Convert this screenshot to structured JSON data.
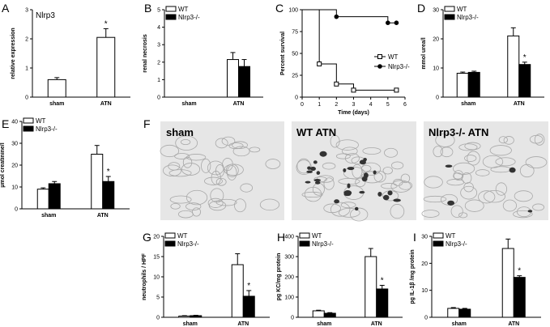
{
  "legend": {
    "wt": "WT",
    "ko": "Nlrp3-/-"
  },
  "chart_data": [
    {
      "panel": "A",
      "type": "bar",
      "title": "Nlrp3",
      "ylabel": "relative expression",
      "categories": [
        "sham",
        "ATN"
      ],
      "ylim": [
        0,
        3
      ],
      "yticks": [
        0,
        1,
        2,
        3
      ],
      "series": [
        {
          "values": [
            0.6,
            2.05
          ],
          "errors": [
            0.07,
            0.3
          ]
        }
      ],
      "significance": [
        "",
        "*"
      ]
    },
    {
      "panel": "B",
      "type": "bar",
      "ylabel": "renal necrosis",
      "categories": [
        "sham",
        "ATN"
      ],
      "ylim": [
        0,
        5
      ],
      "yticks": [
        0,
        1,
        2,
        3,
        4,
        5
      ],
      "series": [
        {
          "name": "WT",
          "values": [
            0,
            2.15
          ],
          "errors": [
            0,
            0.4
          ]
        },
        {
          "name": "Nlrp3-/-",
          "values": [
            0,
            1.75
          ],
          "errors": [
            0,
            0.4
          ]
        }
      ],
      "legend_position": "top-left"
    },
    {
      "panel": "C",
      "type": "line",
      "xlabel": "Time (days)",
      "ylabel": "Percent survival",
      "xlim": [
        0,
        6
      ],
      "ylim": [
        0,
        100
      ],
      "xticks": [
        0,
        1,
        2,
        3,
        4,
        5,
        6
      ],
      "yticks": [
        0,
        25,
        50,
        75,
        100
      ],
      "series": [
        {
          "name": "WT",
          "x": [
            0,
            1,
            1,
            2,
            2,
            3,
            3,
            5.5
          ],
          "y": [
            100,
            100,
            38,
            38,
            15,
            15,
            8,
            8
          ],
          "markers_x": [
            1,
            2,
            3,
            5.5
          ]
        },
        {
          "name": "Nlrp3-/-",
          "x": [
            0,
            2,
            2,
            5,
            5,
            5.5
          ],
          "y": [
            100,
            100,
            92,
            92,
            85,
            85
          ],
          "markers_x": [
            2,
            5,
            5.5
          ]
        }
      ],
      "legend_position": "right"
    },
    {
      "panel": "D",
      "type": "bar",
      "ylabel": "mmol urea/l",
      "categories": [
        "sham",
        "ATN"
      ],
      "ylim": [
        0,
        30
      ],
      "yticks": [
        0,
        10,
        20,
        30
      ],
      "series": [
        {
          "name": "WT",
          "values": [
            8.2,
            21
          ],
          "errors": [
            0.4,
            2.8
          ]
        },
        {
          "name": "Nlrp3-/-",
          "values": [
            8.5,
            11.2
          ],
          "errors": [
            0.4,
            0.8
          ]
        }
      ],
      "significance": [
        "",
        "*"
      ],
      "legend_position": "top-left"
    },
    {
      "panel": "E",
      "type": "bar",
      "ylabel": "µmol creatinine/l",
      "categories": [
        "sham",
        "ATN"
      ],
      "ylim": [
        0,
        40
      ],
      "yticks": [
        0,
        10,
        20,
        30,
        40
      ],
      "series": [
        {
          "name": "WT",
          "values": [
            9,
            25
          ],
          "errors": [
            0.6,
            4
          ]
        },
        {
          "name": "Nlrp3-/-",
          "values": [
            11.5,
            12.5
          ],
          "errors": [
            1,
            2.3
          ]
        }
      ],
      "significance": [
        "",
        "*"
      ],
      "legend_position": "top-left"
    },
    {
      "panel": "G",
      "type": "bar",
      "ylabel": "neutrophils / HPF",
      "categories": [
        "sham",
        "ATN"
      ],
      "ylim": [
        0,
        20
      ],
      "yticks": [
        0,
        5,
        10,
        15,
        20
      ],
      "series": [
        {
          "name": "WT",
          "values": [
            0.3,
            13
          ],
          "errors": [
            0.1,
            2.7
          ]
        },
        {
          "name": "Nlrp3-/-",
          "values": [
            0.4,
            5.2
          ],
          "errors": [
            0.1,
            1.4
          ]
        }
      ],
      "significance": [
        "",
        "*"
      ],
      "legend_position": "top-left"
    },
    {
      "panel": "H",
      "type": "bar",
      "ylabel": "pg KC/mg protein",
      "categories": [
        "sham",
        "ATN"
      ],
      "ylim": [
        0,
        400
      ],
      "yticks": [
        0,
        100,
        200,
        300,
        400
      ],
      "series": [
        {
          "name": "WT",
          "values": [
            32,
            300
          ],
          "errors": [
            3,
            40
          ]
        },
        {
          "name": "Nlrp3-/-",
          "values": [
            20,
            140
          ],
          "errors": [
            3,
            18
          ]
        }
      ],
      "significance": [
        "",
        "*"
      ],
      "legend_position": "top-left"
    },
    {
      "panel": "I",
      "type": "bar",
      "ylabel": "pg IL-1β /mg protein",
      "categories": [
        "sham",
        "ATN"
      ],
      "ylim": [
        0,
        30
      ],
      "yticks": [
        0,
        10,
        20,
        30
      ],
      "series": [
        {
          "name": "WT",
          "values": [
            3.3,
            25.5
          ],
          "errors": [
            0.3,
            3.5
          ]
        },
        {
          "name": "Nlrp3-/-",
          "values": [
            3,
            14.8
          ],
          "errors": [
            0.3,
            0.6
          ]
        }
      ],
      "significance": [
        "",
        "*"
      ],
      "legend_position": "top-left"
    }
  ],
  "micrographs": {
    "panel": "F",
    "labels": [
      "sham",
      "WT ATN",
      "Nlrp3-/- ATN"
    ]
  }
}
